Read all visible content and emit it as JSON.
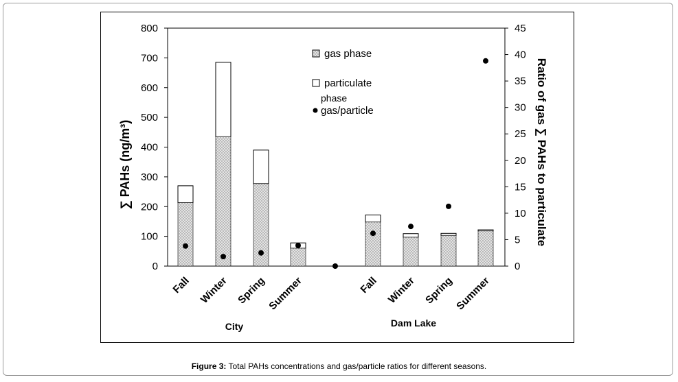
{
  "caption": {
    "label": "Figure 3:",
    "text": " Total PAHs concentrations and gas/particle ratios for different seasons."
  },
  "chart_data": {
    "type": "bar",
    "stacked": true,
    "groups": [
      {
        "name": "City",
        "categories": [
          "Fall",
          "Winter",
          "Spring",
          "Summer"
        ]
      },
      {
        "name": "Dam Lake",
        "categories": [
          "Fall",
          "Winter",
          "Spring",
          "Summer"
        ]
      }
    ],
    "series": [
      {
        "name": "gas phase",
        "values": [
          213,
          435,
          277,
          60,
          148,
          97,
          103,
          118
        ],
        "fill": "dotted-gray"
      },
      {
        "name": "particulate phase",
        "values": [
          57,
          250,
          113,
          18,
          24,
          12,
          7,
          4
        ],
        "fill": "white"
      }
    ],
    "ratio_series": {
      "name": "gas/particle",
      "axis": "right",
      "points": [
        {
          "position": "City Fall",
          "value": 3.8
        },
        {
          "position": "City Winter",
          "value": 1.8
        },
        {
          "position": "City Spring",
          "value": 2.5
        },
        {
          "position": "City Summer",
          "value": 3.9
        },
        {
          "position": "gap",
          "value": 0
        },
        {
          "position": "Dam Lake Fall",
          "value": 6.2
        },
        {
          "position": "Dam Lake Winter",
          "value": 7.5
        },
        {
          "position": "Dam Lake Spring",
          "value": 11.3
        },
        {
          "position": "Dam Lake Summer",
          "value": 38.8
        }
      ]
    },
    "ylabel_left": "∑ PAHs (ng/m³)",
    "ylabel_right": "Ratio of gas ∑ PAHs to particulate",
    "ylim_left": [
      0,
      800
    ],
    "yticks_left": [
      "0",
      "100",
      "200",
      "300",
      "400",
      "500",
      "600",
      "700",
      "800"
    ],
    "ylim_right": [
      0,
      45
    ],
    "yticks_right": [
      "0",
      "5",
      "10",
      "15",
      "20",
      "25",
      "30",
      "35",
      "40",
      "45"
    ],
    "grid": false,
    "legend": {
      "placement": "top-center",
      "entries": [
        {
          "label": "gas phase"
        },
        {
          "label": "particulate"
        },
        {
          "label": "phase"
        },
        {
          "label": "gas/particle"
        }
      ]
    }
  }
}
